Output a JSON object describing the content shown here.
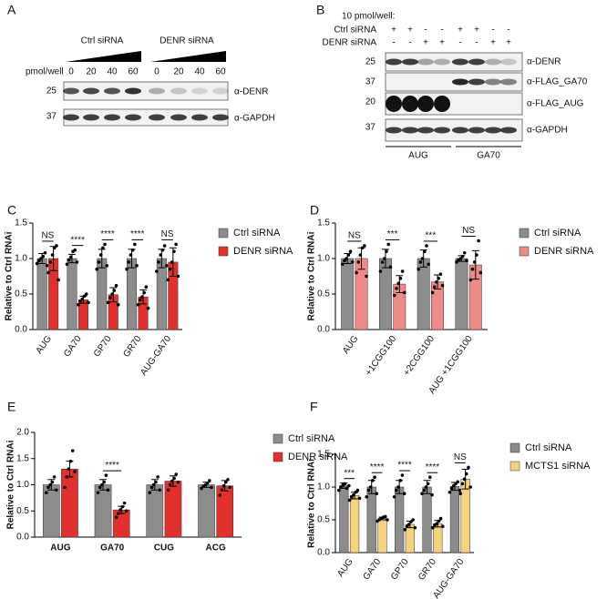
{
  "blot_a": {
    "letter": "A",
    "groups": [
      "Ctrl siRNA",
      "DENR siRNA"
    ],
    "amount_label": "pmol/well",
    "amounts": [
      0,
      20,
      40,
      60,
      0,
      20,
      40,
      60
    ],
    "markers": [
      25,
      37
    ],
    "antibodies": [
      "α-DENR",
      "α-GAPDH"
    ]
  },
  "blot_b": {
    "letter": "B",
    "header": "10 pmol/well:",
    "rows": [
      {
        "label": "Ctrl siRNA",
        "signs": [
          "+",
          "+",
          "-",
          "-",
          "+",
          "+",
          "-",
          "-"
        ]
      },
      {
        "label": "DENR siRNA",
        "signs": [
          "-",
          "-",
          "+",
          "+",
          "-",
          "-",
          "+",
          "+"
        ]
      }
    ],
    "markers": [
      25,
      37,
      20,
      37
    ],
    "antibodies": [
      "α-DENR",
      "α-FLAG_GA70",
      "α-FLAG_AUG",
      "α-GAPDH"
    ],
    "constructs": [
      "AUG",
      "GA70"
    ]
  },
  "chart_data": [
    {
      "type": "bar",
      "panel": "C",
      "ylabel": "Relative to Ctrl RNAi",
      "categories": [
        "AUG",
        "GA70",
        "GP70",
        "GR70",
        "AUG-GA70"
      ],
      "ylim": [
        0,
        1.5
      ],
      "yticks": [
        {
          "value": 0,
          "label": "0.0"
        },
        {
          "value": 0.5,
          "label": "0.5"
        },
        {
          "value": 1,
          "label": "1.0"
        },
        {
          "value": 1.5,
          "label": "1.5"
        }
      ],
      "legend": "right",
      "series": [
        {
          "name": "Ctrl siRNA",
          "color": "#8c8c8c",
          "values": [
            1.0,
            1.0,
            1.0,
            1.0,
            1.0
          ],
          "errors": [
            0.07,
            0.06,
            0.13,
            0.13,
            0.13
          ],
          "points": [
            [
              0.93,
              0.97,
              1.0,
              1.03,
              1.08,
              0.9
            ],
            [
              0.92,
              0.98,
              1.02,
              1.1,
              1.12,
              0.95
            ],
            [
              0.85,
              0.95,
              1.05,
              1.15,
              1.2,
              0.9
            ],
            [
              0.85,
              0.95,
              1.05,
              1.12,
              1.2,
              0.9
            ],
            [
              0.82,
              0.95,
              1.05,
              1.12,
              1.18,
              0.9
            ]
          ]
        },
        {
          "name": "DENR siRNA",
          "color": "#e2312d",
          "values": [
            1.0,
            0.42,
            0.49,
            0.46,
            0.95
          ],
          "errors": [
            0.17,
            0.05,
            0.1,
            0.1,
            0.2
          ],
          "points": [
            [
              0.8,
              0.95,
              1.05,
              1.15,
              1.18,
              0.7
            ],
            [
              0.35,
              0.4,
              0.43,
              0.47,
              0.5,
              0.38
            ],
            [
              0.38,
              0.45,
              0.5,
              0.55,
              0.62,
              0.35
            ],
            [
              0.35,
              0.42,
              0.46,
              0.52,
              0.6,
              0.3
            ],
            [
              0.7,
              0.85,
              0.95,
              1.1,
              1.2,
              0.75
            ]
          ]
        }
      ],
      "annotations": [
        "NS",
        "****",
        "****",
        "****",
        "NS"
      ]
    },
    {
      "type": "bar",
      "panel": "D",
      "ylabel": "Relative to Ctrl RNAi",
      "categories": [
        "AUG",
        "+1CGG100",
        "+2CGG100",
        "AUG +1CGG100"
      ],
      "ylim": [
        0,
        1.5
      ],
      "yticks": [
        {
          "value": 0,
          "label": "0.0"
        },
        {
          "value": 0.5,
          "label": "0.5"
        },
        {
          "value": 1,
          "label": "1.0"
        },
        {
          "value": 1.5,
          "label": "1.5"
        }
      ],
      "legend": "right",
      "series": [
        {
          "name": "Ctrl siRNA",
          "color": "#8c8c8c",
          "values": [
            1.0,
            1.0,
            1.0,
            1.0
          ],
          "errors": [
            0.07,
            0.13,
            0.12,
            0.04
          ],
          "points": [
            [
              0.92,
              0.97,
              1.0,
              1.05,
              1.1,
              0.95
            ],
            [
              0.82,
              0.95,
              1.0,
              1.1,
              1.2,
              0.88
            ],
            [
              0.85,
              0.95,
              1.0,
              1.1,
              1.18,
              0.92
            ],
            [
              0.95,
              0.98,
              1.0,
              1.03,
              1.08,
              0.97
            ]
          ]
        },
        {
          "name": "DENR siRNA",
          "color": "#f08a86",
          "values": [
            1.0,
            0.64,
            0.67,
            0.91
          ],
          "errors": [
            0.15,
            0.12,
            0.1,
            0.2
          ],
          "points": [
            [
              0.8,
              0.95,
              1.05,
              1.15,
              1.18,
              0.75
            ],
            [
              0.48,
              0.58,
              0.65,
              0.72,
              0.82,
              0.52
            ],
            [
              0.52,
              0.6,
              0.67,
              0.72,
              0.78,
              0.62
            ],
            [
              0.7,
              0.85,
              0.95,
              1.05,
              1.25,
              0.8
            ]
          ]
        }
      ],
      "annotations": [
        "NS",
        "***",
        "***",
        "NS"
      ]
    },
    {
      "type": "bar",
      "panel": "E",
      "ylabel": "Relative to Ctrl RNAi",
      "categories": [
        "AUG",
        "GA70",
        "CUG",
        "ACG"
      ],
      "ylim": [
        0,
        2
      ],
      "yticks": [
        {
          "value": 0,
          "label": "0.0"
        },
        {
          "value": 0.5,
          "label": "0.5"
        },
        {
          "value": 1,
          "label": "1.0"
        },
        {
          "value": 1.5,
          "label": "1.5"
        },
        {
          "value": 2,
          "label": "2.0"
        }
      ],
      "legend": "right",
      "series": [
        {
          "name": "Ctrl siRNA",
          "color": "#8c8c8c",
          "values": [
            1.0,
            1.0,
            1.0,
            1.0
          ],
          "errors": [
            0.1,
            0.1,
            0.1,
            0.05
          ],
          "points": [
            [
              0.85,
              0.95,
              1.0,
              1.05,
              1.15,
              0.9
            ],
            [
              0.85,
              0.95,
              1.0,
              1.05,
              1.18,
              0.9
            ],
            [
              0.85,
              0.95,
              1.0,
              1.05,
              1.15,
              0.9
            ],
            [
              0.93,
              0.97,
              1.0,
              1.03,
              1.08,
              0.95
            ]
          ]
        },
        {
          "name": "DENR siRNA",
          "color": "#e2312d",
          "values": [
            1.3,
            0.52,
            1.07,
            0.98
          ],
          "errors": [
            0.15,
            0.07,
            0.1,
            0.1
          ],
          "points": [
            [
              0.95,
              1.15,
              1.3,
              1.45,
              1.65,
              1.25
            ],
            [
              0.38,
              0.45,
              0.52,
              0.58,
              0.65,
              0.5
            ],
            [
              0.9,
              1.0,
              1.07,
              1.12,
              1.2,
              1.05
            ],
            [
              0.8,
              0.9,
              0.98,
              1.05,
              1.1,
              0.95
            ]
          ]
        }
      ],
      "annotations": [
        null,
        "****",
        null,
        null
      ]
    },
    {
      "type": "bar",
      "panel": "F",
      "ylabel": "Relative to Ctrl RNAi",
      "categories": [
        "AUG",
        "GA70",
        "GP70",
        "GR70",
        "AUG-GA70"
      ],
      "ylim": [
        0,
        1.5
      ],
      "yticks": [
        {
          "value": 0,
          "label": "0.0"
        },
        {
          "value": 0.5,
          "label": "0.5"
        },
        {
          "value": 1,
          "label": "1.0"
        },
        {
          "value": 1.5,
          "label": "1.5"
        }
      ],
      "legend": "right",
      "series": [
        {
          "name": "Ctrl siRNA",
          "color": "#8c8c8c",
          "values": [
            1.02,
            1.0,
            1.0,
            1.0,
            1.01
          ],
          "errors": [
            0.04,
            0.1,
            0.1,
            0.1,
            0.06
          ],
          "points": [
            [
              0.95,
              1.0,
              1.03,
              1.05,
              0.98,
              1.02
            ],
            [
              0.85,
              0.95,
              1.0,
              1.1,
              1.15,
              0.9
            ],
            [
              0.85,
              0.95,
              1.0,
              1.1,
              1.18,
              0.9
            ],
            [
              0.9,
              0.95,
              1.0,
              1.05,
              1.15,
              0.88
            ],
            [
              0.92,
              0.98,
              1.02,
              1.05,
              1.08,
              0.95
            ]
          ]
        },
        {
          "name": "MCTS1 siRNA",
          "color": "#f7d27c",
          "values": [
            0.87,
            0.52,
            0.43,
            0.44,
            1.12
          ],
          "errors": [
            0.05,
            0.02,
            0.05,
            0.05,
            0.15
          ],
          "points": [
            [
              0.8,
              0.85,
              0.88,
              0.92,
              0.95,
              0.83
            ],
            [
              0.48,
              0.5,
              0.52,
              0.54,
              0.55,
              0.5
            ],
            [
              0.35,
              0.4,
              0.43,
              0.47,
              0.5,
              0.38
            ],
            [
              0.38,
              0.42,
              0.44,
              0.48,
              0.52,
              0.4
            ],
            [
              0.9,
              1.05,
              1.12,
              1.2,
              1.3,
              1.0
            ]
          ]
        }
      ],
      "annotations": [
        "***",
        "****",
        "****",
        "****",
        "NS"
      ]
    }
  ]
}
